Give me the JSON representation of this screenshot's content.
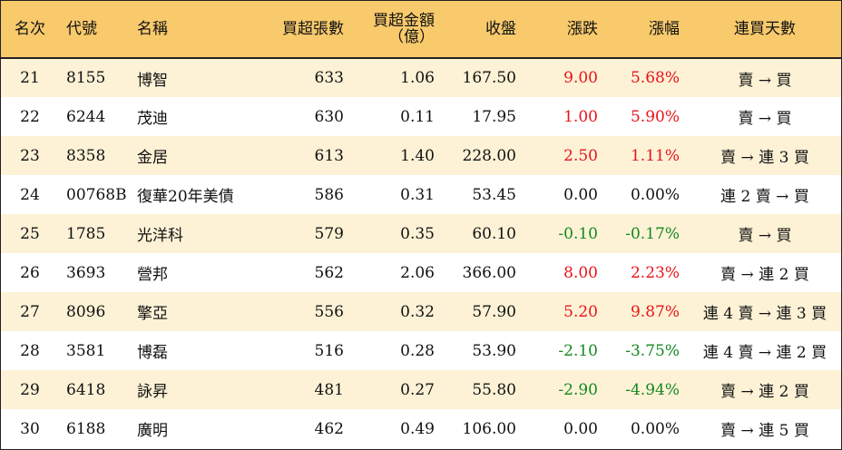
{
  "headers": {
    "rank": "名次",
    "code": "代號",
    "name": "名稱",
    "net_buy_lots": "買超張數",
    "net_buy_amount_l1": "買超金額",
    "net_buy_amount_l2": "（億）",
    "close": "收盤",
    "change": "漲跌",
    "change_pct": "漲幅",
    "streak": "連買天數"
  },
  "colors": {
    "header_bg": "#f8ca6c",
    "odd_row_bg": "#fdf2d6",
    "even_row_bg": "#ffffff",
    "up": "#e8131a",
    "down": "#13891e",
    "flat": "#111111"
  },
  "rows": [
    {
      "rank": "21",
      "code": "8155",
      "name": "博智",
      "lots": "633",
      "amount": "1.06",
      "close": "167.50",
      "change": "9.00",
      "pct": "5.68%",
      "streak": "賣 → 買",
      "dir": "up"
    },
    {
      "rank": "22",
      "code": "6244",
      "name": "茂迪",
      "lots": "630",
      "amount": "0.11",
      "close": "17.95",
      "change": "1.00",
      "pct": "5.90%",
      "streak": "賣 → 買",
      "dir": "up"
    },
    {
      "rank": "23",
      "code": "8358",
      "name": "金居",
      "lots": "613",
      "amount": "1.40",
      "close": "228.00",
      "change": "2.50",
      "pct": "1.11%",
      "streak": "賣 → 連 3 買",
      "dir": "up"
    },
    {
      "rank": "24",
      "code": "00768B",
      "name": "復華20年美債",
      "lots": "586",
      "amount": "0.31",
      "close": "53.45",
      "change": "0.00",
      "pct": "0.00%",
      "streak": "連 2 賣 → 買",
      "dir": "flat"
    },
    {
      "rank": "25",
      "code": "1785",
      "name": "光洋科",
      "lots": "579",
      "amount": "0.35",
      "close": "60.10",
      "change": "-0.10",
      "pct": "-0.17%",
      "streak": "賣 → 買",
      "dir": "down"
    },
    {
      "rank": "26",
      "code": "3693",
      "name": "營邦",
      "lots": "562",
      "amount": "2.06",
      "close": "366.00",
      "change": "8.00",
      "pct": "2.23%",
      "streak": "賣 → 連 2 買",
      "dir": "up"
    },
    {
      "rank": "27",
      "code": "8096",
      "name": "擎亞",
      "lots": "556",
      "amount": "0.32",
      "close": "57.90",
      "change": "5.20",
      "pct": "9.87%",
      "streak": "連 4 賣 → 連 3 買",
      "dir": "up"
    },
    {
      "rank": "28",
      "code": "3581",
      "name": "博磊",
      "lots": "516",
      "amount": "0.28",
      "close": "53.90",
      "change": "-2.10",
      "pct": "-3.75%",
      "streak": "連 4 賣 → 連 2 買",
      "dir": "down"
    },
    {
      "rank": "29",
      "code": "6418",
      "name": "詠昇",
      "lots": "481",
      "amount": "0.27",
      "close": "55.80",
      "change": "-2.90",
      "pct": "-4.94%",
      "streak": "賣 → 連 2 買",
      "dir": "down"
    },
    {
      "rank": "30",
      "code": "6188",
      "name": "廣明",
      "lots": "462",
      "amount": "0.49",
      "close": "106.00",
      "change": "0.00",
      "pct": "0.00%",
      "streak": "賣 → 連 5 買",
      "dir": "flat"
    }
  ]
}
